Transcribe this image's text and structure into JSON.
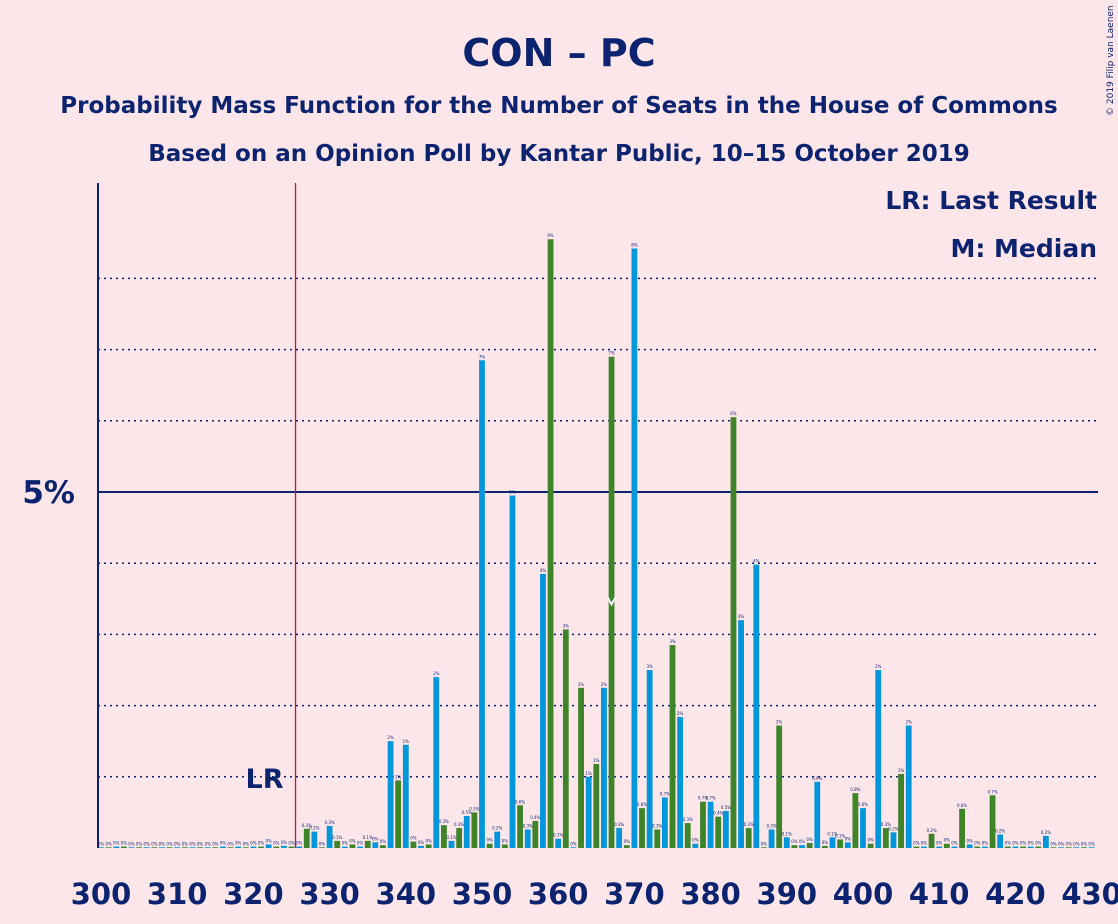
{
  "title": "CON – PC",
  "subtitle1": "Probability Mass Function for the Number of Seats in the House of Commons",
  "subtitle2": "Based on an Opinion Poll by Kantar Public, 10–15 October 2019",
  "legend": {
    "last_result": "LR: Last Result",
    "median": "M: Median"
  },
  "copyright": "© 2019 Filip van Laenen",
  "colors": {
    "background": "#fde6ea",
    "axis": "#0c2470",
    "con": "#0096dc",
    "pc": "#3f8428",
    "last_result_line": "#cc1133"
  },
  "chart_data": {
    "type": "bar",
    "xlabel": "",
    "ylabel": "",
    "x_ticks": [
      300,
      310,
      320,
      330,
      340,
      350,
      360,
      370,
      380,
      390,
      400,
      410,
      420,
      430
    ],
    "y_tick_label": "5%",
    "y_tick_value": 5,
    "ylim": [
      0,
      9.3
    ],
    "xlim": [
      300,
      430
    ],
    "grid": "dotted every 1%, solid at 5%",
    "last_result": {
      "label": "LR",
      "seats": 326
    },
    "median": {
      "label": "M",
      "seats": 367
    },
    "series": [
      {
        "name": "Seats",
        "points": [
          {
            "x": 300,
            "y": 0.01
          },
          {
            "x": 301,
            "y": 0.01
          },
          {
            "x": 302,
            "y": 0.02
          },
          {
            "x": 303,
            "y": 0.02
          },
          {
            "x": 304,
            "y": 0.01
          },
          {
            "x": 305,
            "y": 0.01
          },
          {
            "x": 306,
            "y": 0.01
          },
          {
            "x": 307,
            "y": 0.01
          },
          {
            "x": 308,
            "y": 0.01
          },
          {
            "x": 309,
            "y": 0.01
          },
          {
            "x": 310,
            "y": 0.01
          },
          {
            "x": 311,
            "y": 0.01
          },
          {
            "x": 312,
            "y": 0.01
          },
          {
            "x": 313,
            "y": 0.01
          },
          {
            "x": 314,
            "y": 0.01
          },
          {
            "x": 315,
            "y": 0.01
          },
          {
            "x": 316,
            "y": 0.02
          },
          {
            "x": 317,
            "y": 0.01
          },
          {
            "x": 318,
            "y": 0.02
          },
          {
            "x": 319,
            "y": 0.01
          },
          {
            "x": 320,
            "y": 0.02
          },
          {
            "x": 321,
            "y": 0.02
          },
          {
            "x": 322,
            "y": 0.05
          },
          {
            "x": 323,
            "y": 0.02
          },
          {
            "x": 324,
            "y": 0.03
          },
          {
            "x": 325,
            "y": 0.02
          },
          {
            "x": 326,
            "y": 0.02
          },
          {
            "x": 327,
            "y": 0.27
          },
          {
            "x": 328,
            "y": 0.23
          },
          {
            "x": 329,
            "y": 0.01
          },
          {
            "x": 330,
            "y": 0.31
          },
          {
            "x": 331,
            "y": 0.1
          },
          {
            "x": 332,
            "y": 0.02
          },
          {
            "x": 333,
            "y": 0.05
          },
          {
            "x": 334,
            "y": 0.02
          },
          {
            "x": 335,
            "y": 0.1
          },
          {
            "x": 336,
            "y": 0.08
          },
          {
            "x": 337,
            "y": 0.04
          },
          {
            "x": 338,
            "y": 1.5
          },
          {
            "x": 339,
            "y": 0.95
          },
          {
            "x": 340,
            "y": 1.45
          },
          {
            "x": 341,
            "y": 0.09
          },
          {
            "x": 342,
            "y": 0.03
          },
          {
            "x": 343,
            "y": 0.05
          },
          {
            "x": 344,
            "y": 2.4
          },
          {
            "x": 345,
            "y": 0.32
          },
          {
            "x": 346,
            "y": 0.1
          },
          {
            "x": 347,
            "y": 0.28
          },
          {
            "x": 348,
            "y": 0.45
          },
          {
            "x": 349,
            "y": 0.5
          },
          {
            "x": 350,
            "y": 6.85
          },
          {
            "x": 351,
            "y": 0.06
          },
          {
            "x": 352,
            "y": 0.23
          },
          {
            "x": 353,
            "y": 0.05
          },
          {
            "x": 354,
            "y": 4.95
          },
          {
            "x": 355,
            "y": 0.6
          },
          {
            "x": 356,
            "y": 0.26
          },
          {
            "x": 357,
            "y": 0.38
          },
          {
            "x": 358,
            "y": 3.85
          },
          {
            "x": 359,
            "y": 8.55
          },
          {
            "x": 360,
            "y": 0.13
          },
          {
            "x": 361,
            "y": 3.07
          },
          {
            "x": 362,
            "y": 0.01
          },
          {
            "x": 363,
            "y": 2.25
          },
          {
            "x": 364,
            "y": 1.0
          },
          {
            "x": 365,
            "y": 1.18
          },
          {
            "x": 366,
            "y": 2.25
          },
          {
            "x": 367,
            "y": 6.9
          },
          {
            "x": 368,
            "y": 0.28
          },
          {
            "x": 369,
            "y": 0.04
          },
          {
            "x": 370,
            "y": 8.42
          },
          {
            "x": 371,
            "y": 0.56
          },
          {
            "x": 372,
            "y": 2.5
          },
          {
            "x": 373,
            "y": 0.26
          },
          {
            "x": 374,
            "y": 0.71
          },
          {
            "x": 375,
            "y": 2.85
          },
          {
            "x": 376,
            "y": 1.84
          },
          {
            "x": 377,
            "y": 0.35
          },
          {
            "x": 378,
            "y": 0.06
          },
          {
            "x": 379,
            "y": 0.65
          },
          {
            "x": 380,
            "y": 0.65
          },
          {
            "x": 381,
            "y": 0.44
          },
          {
            "x": 382,
            "y": 0.52
          },
          {
            "x": 383,
            "y": 6.05
          },
          {
            "x": 384,
            "y": 3.2
          },
          {
            "x": 385,
            "y": 0.28
          },
          {
            "x": 386,
            "y": 3.98
          },
          {
            "x": 387,
            "y": 0.01
          },
          {
            "x": 388,
            "y": 0.26
          },
          {
            "x": 389,
            "y": 1.72
          },
          {
            "x": 390,
            "y": 0.15
          },
          {
            "x": 391,
            "y": 0.04
          },
          {
            "x": 392,
            "y": 0.04
          },
          {
            "x": 393,
            "y": 0.07
          },
          {
            "x": 394,
            "y": 0.93
          },
          {
            "x": 395,
            "y": 0.03
          },
          {
            "x": 396,
            "y": 0.15
          },
          {
            "x": 397,
            "y": 0.12
          },
          {
            "x": 398,
            "y": 0.08
          },
          {
            "x": 399,
            "y": 0.77
          },
          {
            "x": 400,
            "y": 0.56
          },
          {
            "x": 401,
            "y": 0.06
          },
          {
            "x": 402,
            "y": 2.5
          },
          {
            "x": 403,
            "y": 0.28
          },
          {
            "x": 404,
            "y": 0.22
          },
          {
            "x": 405,
            "y": 1.04
          },
          {
            "x": 406,
            "y": 1.72
          },
          {
            "x": 407,
            "y": 0.02
          },
          {
            "x": 408,
            "y": 0.02
          },
          {
            "x": 409,
            "y": 0.2
          },
          {
            "x": 410,
            "y": 0.02
          },
          {
            "x": 411,
            "y": 0.06
          },
          {
            "x": 412,
            "y": 0.02
          },
          {
            "x": 413,
            "y": 0.55
          },
          {
            "x": 414,
            "y": 0.05
          },
          {
            "x": 415,
            "y": 0.02
          },
          {
            "x": 416,
            "y": 0.02
          },
          {
            "x": 417,
            "y": 0.74
          },
          {
            "x": 418,
            "y": 0.19
          },
          {
            "x": 419,
            "y": 0.02
          },
          {
            "x": 420,
            "y": 0.02
          },
          {
            "x": 421,
            "y": 0.02
          },
          {
            "x": 422,
            "y": 0.02
          },
          {
            "x": 423,
            "y": 0.02
          },
          {
            "x": 424,
            "y": 0.17
          },
          {
            "x": 425,
            "y": 0.01
          },
          {
            "x": 426,
            "y": 0.01
          },
          {
            "x": 427,
            "y": 0.01
          },
          {
            "x": 428,
            "y": 0.01
          },
          {
            "x": 429,
            "y": 0.01
          },
          {
            "x": 430,
            "y": 0.01
          }
        ]
      }
    ]
  }
}
